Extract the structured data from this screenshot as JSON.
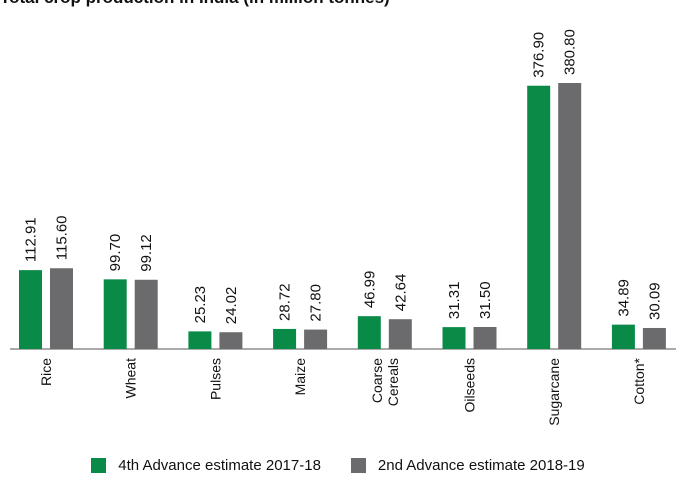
{
  "chart_data": {
    "type": "bar",
    "title": "Total crop production in India (in million tonnes)",
    "categories": [
      "Rice",
      "Wheat",
      "Pulses",
      "Maize",
      "Coarse Cereals",
      "Oilseeds",
      "Sugarcane",
      "Cotton*"
    ],
    "series": [
      {
        "name": "4th Advance estimate 2017-18",
        "color": "#0a8a47",
        "values": [
          112.91,
          99.7,
          25.23,
          28.72,
          46.99,
          31.31,
          376.9,
          34.89
        ],
        "labels": [
          "112.91",
          "99.70",
          "25.23",
          "28.72",
          "46.99",
          "31.31",
          "376.90",
          "34.89"
        ]
      },
      {
        "name": "2nd Advance estimate 2018-19",
        "color": "#6b6b6e",
        "values": [
          115.6,
          99.12,
          24.02,
          27.8,
          42.64,
          31.5,
          380.8,
          30.09
        ],
        "labels": [
          "115.60",
          "99.12",
          "24.02",
          "27.80",
          "42.64",
          "31.50",
          "380.80",
          "30.09"
        ]
      }
    ],
    "ylim": [
      0,
      400
    ],
    "grid": false,
    "legend_position": "bottom"
  }
}
